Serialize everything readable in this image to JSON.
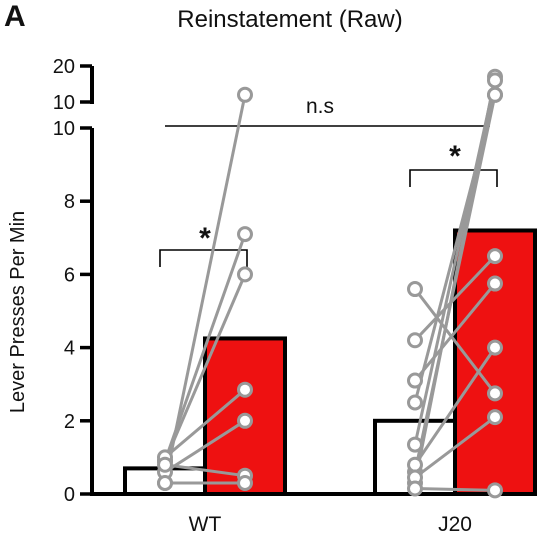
{
  "panel_label": "A",
  "chart_data": {
    "type": "bar",
    "title": "Reinstatement (Raw)",
    "xlabel": "",
    "ylabel": "Lever Presses Per Min",
    "ylim": [
      0,
      10
    ],
    "yticks": [
      0,
      2,
      4,
      6,
      8,
      10
    ],
    "broken_axis_upper": {
      "ylim": [
        10,
        20
      ],
      "ticks": [
        10,
        20
      ]
    },
    "grid": false,
    "categories": [
      "WT",
      "J20"
    ],
    "bar_colors": {
      "baseline": "#ffffff",
      "reinstatement": "#ee1111",
      "edge": "#000000"
    },
    "series": [
      {
        "values": [
          0.7,
          2.0
        ]
      },
      {
        "values": [
          4.25,
          7.2
        ]
      }
    ],
    "individual_points": {
      "line_color": "#999999",
      "marker_edge": "#999999",
      "WT": [
        {
          "pre": 0.3,
          "post": 12
        },
        {
          "pre": 0.9,
          "post": 7.1
        },
        {
          "pre": 0.9,
          "post": 6.0
        },
        {
          "pre": 1.0,
          "post": 2.85
        },
        {
          "pre": 0.6,
          "post": 2.0
        },
        {
          "pre": 0.8,
          "post": 0.5
        },
        {
          "pre": 0.3,
          "post": 0.3
        }
      ],
      "J20": [
        {
          "pre": 0.3,
          "post": 17
        },
        {
          "pre": 0.6,
          "post": 12
        },
        {
          "pre": 1.35,
          "post": 16
        },
        {
          "pre": 2.5,
          "post": 12
        },
        {
          "pre": 4.2,
          "post": 6.5
        },
        {
          "pre": 3.1,
          "post": 5.75
        },
        {
          "pre": 0.8,
          "post": 4.0
        },
        {
          "pre": 5.6,
          "post": 2.75
        },
        {
          "pre": 0.45,
          "post": 2.1
        },
        {
          "pre": 0.15,
          "post": 0.1
        }
      ]
    },
    "annotations": [
      {
        "text": "*",
        "between": [
          "WT-baseline",
          "WT-reinstatement"
        ]
      },
      {
        "text": "*",
        "between": [
          "J20-baseline",
          "J20-reinstatement"
        ]
      },
      {
        "text": "n.s",
        "between": [
          "WT",
          "J20"
        ]
      }
    ]
  }
}
